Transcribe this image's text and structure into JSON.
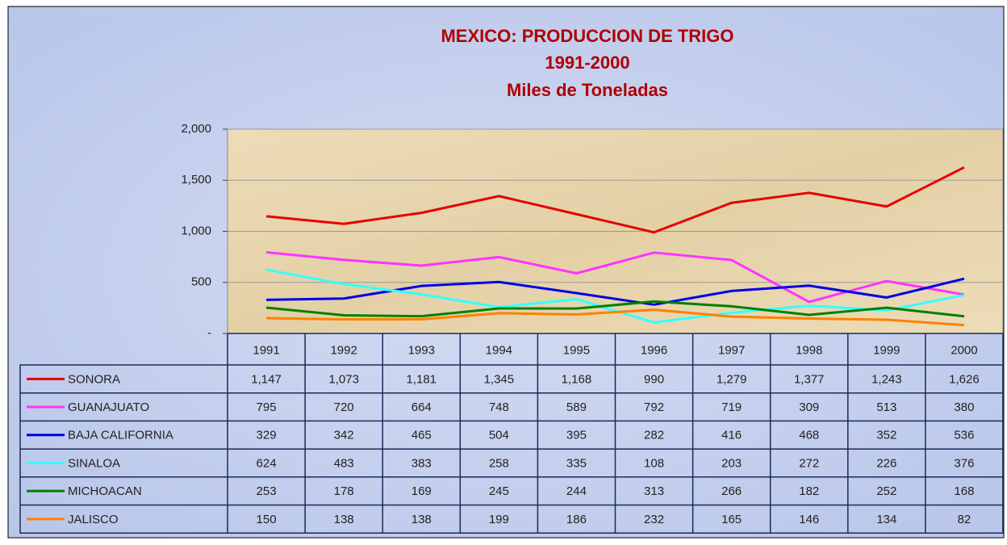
{
  "chart_data": {
    "type": "line",
    "title": "MEXICO: PRODUCCION DE TRIGO",
    "subtitle": "1991-2000",
    "units": "Miles de Toneladas",
    "categories": [
      "1991",
      "1992",
      "1993",
      "1994",
      "1995",
      "1996",
      "1997",
      "1998",
      "1999",
      "2000"
    ],
    "ylim": [
      0,
      2000
    ],
    "yticks": [
      {
        "value": 0,
        "label": "-"
      },
      500,
      {
        "value": 1000,
        "label": "1,000"
      },
      {
        "value": 1500,
        "label": "1,500"
      },
      {
        "value": 2000,
        "label": "2,000"
      }
    ],
    "grid": true,
    "series": [
      {
        "name": "SONORA",
        "color": "#e60000",
        "values": [
          1147,
          1073,
          1181,
          1345,
          1168,
          990,
          1279,
          1377,
          1243,
          1626
        ],
        "value_labels": [
          "1,147",
          "1,073",
          "1,181",
          "1,345",
          "1,168",
          "990",
          "1,279",
          "1,377",
          "1,243",
          "1,626"
        ]
      },
      {
        "name": "GUANAJUATO",
        "color": "#ff33ff",
        "values": [
          795,
          720,
          664,
          748,
          589,
          792,
          719,
          309,
          513,
          380
        ]
      },
      {
        "name": "BAJA CALIFORNIA",
        "color": "#0000e6",
        "values": [
          329,
          342,
          465,
          504,
          395,
          282,
          416,
          468,
          352,
          536
        ]
      },
      {
        "name": "SINALOA",
        "color": "#33ffff",
        "values": [
          624,
          483,
          383,
          258,
          335,
          108,
          203,
          272,
          226,
          376
        ]
      },
      {
        "name": "MICHOACAN",
        "color": "#008000",
        "values": [
          253,
          178,
          169,
          245,
          244,
          313,
          266,
          182,
          252,
          168
        ]
      },
      {
        "name": "JALISCO",
        "color": "#ff8000",
        "values": [
          150,
          138,
          138,
          199,
          186,
          232,
          165,
          146,
          134,
          82
        ]
      }
    ]
  }
}
